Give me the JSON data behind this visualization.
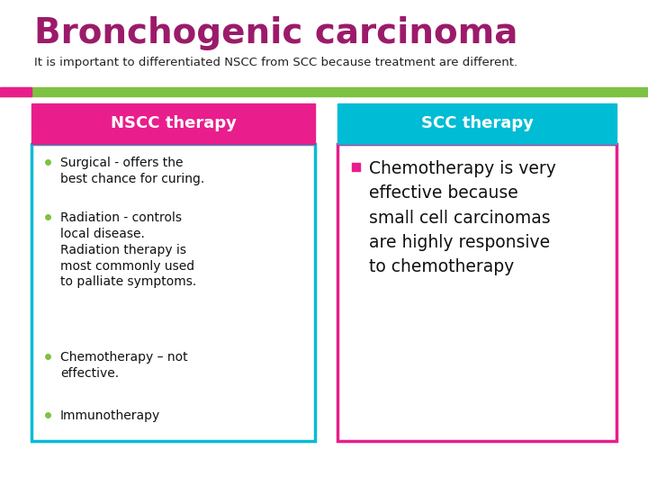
{
  "title": "Bronchogenic carcinoma",
  "subtitle": "It is important to differentiated NSCC from SCC because treatment are different.",
  "title_color": "#9B1B6A",
  "subtitle_color": "#222222",
  "background_color": "#FFFFFF",
  "header_bar_color": "#7DC242",
  "left_accent_color": "#E91E8C",
  "nscc_header": "NSCC therapy",
  "nscc_header_bg": "#E91E8C",
  "nscc_header_text_color": "#FFFFFF",
  "nscc_border_color": "#00BCD4",
  "nscc_bullet_color": "#7DC242",
  "nscc_bullets": [
    "Surgical - offers the\nbest chance for curing.",
    "Radiation - controls\nlocal disease.\nRadiation therapy is\nmost commonly used\nto palliate symptoms.",
    "Chemotherapy – not\neffective.",
    "Immunotherapy"
  ],
  "scc_header": "SCC therapy",
  "scc_header_bg": "#00BCD4",
  "scc_header_text_color": "#FFFFFF",
  "scc_border_color": "#E91E8C",
  "scc_bullet_color": "#E91E8C",
  "scc_bullets": [
    "Chemotherapy is very\neffective because\nsmall cell carcinomas\nare highly responsive\nto chemotherapy"
  ]
}
